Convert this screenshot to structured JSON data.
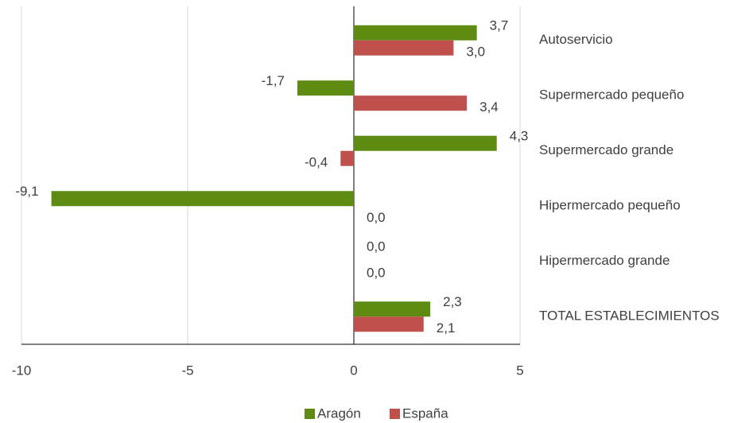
{
  "chart_data": {
    "type": "bar",
    "orientation": "horizontal",
    "categories": [
      "Autoservicio",
      "Supermercado pequeño",
      "Supermercado grande",
      "Hipermercado pequeño",
      "Hipermercado grande",
      "TOTAL ESTABLECIMIENTOS"
    ],
    "series": [
      {
        "name": "Aragón",
        "color": "#5e8c13",
        "values": [
          3.7,
          -1.7,
          4.3,
          -9.1,
          0.0,
          2.3
        ],
        "value_labels": [
          "3,7",
          "-1,7",
          "4,3",
          "-9,1",
          "0,0",
          "2,3"
        ]
      },
      {
        "name": "España",
        "color": "#c0504d",
        "values": [
          3.0,
          3.4,
          -0.4,
          0.0,
          0.0,
          2.1
        ],
        "value_labels": [
          "3,0",
          "3,4",
          "-0,4",
          "0,0",
          "0,0",
          "2,1"
        ]
      }
    ],
    "xlim": [
      -10,
      5
    ],
    "xticks": [
      -10,
      -5,
      0,
      5
    ],
    "grid": true,
    "legend": "bottom"
  }
}
